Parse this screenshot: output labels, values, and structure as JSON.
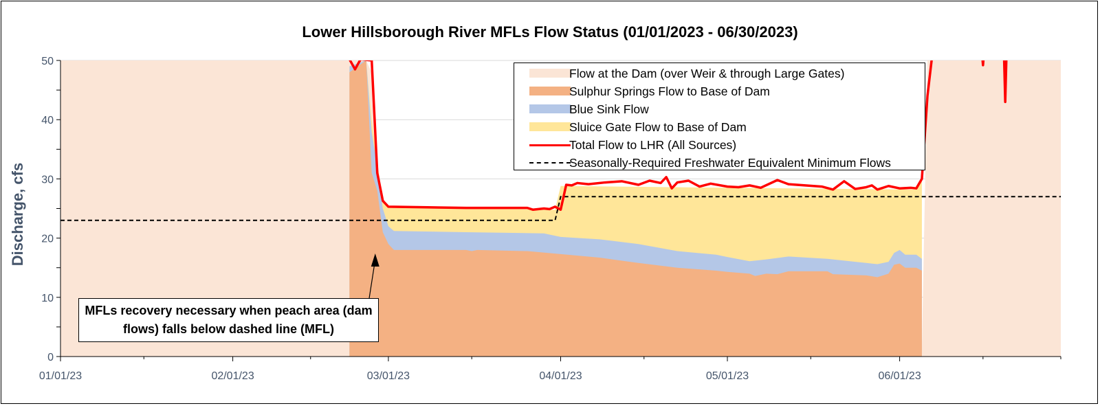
{
  "chart_data": {
    "type": "area",
    "title": "Lower Hillsborough River MFLs Flow Status (01/01/2023 - 06/30/2023)",
    "xlabel": "",
    "ylabel": "Discharge, cfs",
    "xlim": [
      "2023-01-01",
      "2023-06-30"
    ],
    "ylim": [
      0,
      50
    ],
    "yticks": [
      0,
      10,
      20,
      30,
      40,
      50
    ],
    "ytick_labels": [
      "0",
      "10",
      "20",
      "30",
      "40",
      "50"
    ],
    "xtick_labels": [
      {
        "date": "2023-01-01",
        "label": "01/01/23"
      },
      {
        "date": "2023-02-01",
        "label": "02/01/23"
      },
      {
        "date": "2023-03-01",
        "label": "03/01/23"
      },
      {
        "date": "2023-04-01",
        "label": "04/01/23"
      },
      {
        "date": "2023-05-01",
        "label": "05/01/23"
      },
      {
        "date": "2023-06-01",
        "label": "06/01/23"
      }
    ],
    "grid": "horizontal",
    "legend_position": "top-right",
    "colors": {
      "dam": "#FBE5D6",
      "sulphur": "#F4B183",
      "bluesink": "#B4C7E7",
      "sluice": "#FFE699",
      "total": "#FF0000",
      "mfl": "#000000"
    },
    "series": [
      {
        "name": "Flow at the Dam (over Weir & through Large Gates)",
        "points": [
          [
            "2023-01-01",
            50
          ],
          [
            "2023-02-22",
            50
          ],
          [
            "2023-02-25",
            50
          ],
          [
            "2023-02-26",
            48
          ],
          [
            "2023-02-27",
            31
          ],
          [
            "2023-02-28",
            7
          ],
          [
            "2023-03-01",
            0
          ],
          [
            "2023-06-04",
            0
          ],
          [
            "2023-06-05",
            1
          ],
          [
            "2023-06-06",
            50
          ],
          [
            "2023-06-30",
            50
          ]
        ]
      },
      {
        "name": "Sulphur Springs Flow to Base of Dam",
        "points": [
          [
            "2023-02-22",
            48
          ],
          [
            "2023-02-25",
            50
          ],
          [
            "2023-02-26",
            31
          ],
          [
            "2023-02-27",
            28
          ],
          [
            "2023-02-28",
            21
          ],
          [
            "2023-03-01",
            19
          ],
          [
            "2023-03-02",
            18
          ],
          [
            "2023-03-15",
            18
          ],
          [
            "2023-03-16",
            17.8
          ],
          [
            "2023-03-17",
            18
          ],
          [
            "2023-03-26",
            17.8
          ],
          [
            "2023-04-01",
            17.3
          ],
          [
            "2023-04-08",
            16.7
          ],
          [
            "2023-04-15",
            15.8
          ],
          [
            "2023-04-22",
            15
          ],
          [
            "2023-04-29",
            14.5
          ],
          [
            "2023-05-01",
            14.3
          ],
          [
            "2023-05-05",
            14
          ],
          [
            "2023-05-06",
            13.6
          ],
          [
            "2023-05-08",
            14
          ],
          [
            "2023-05-10",
            13.9
          ],
          [
            "2023-05-12",
            14.4
          ],
          [
            "2023-05-19",
            14.4
          ],
          [
            "2023-05-20",
            13.9
          ],
          [
            "2023-05-26",
            13.7
          ],
          [
            "2023-05-28",
            13.4
          ],
          [
            "2023-05-30",
            14
          ],
          [
            "2023-05-31",
            15.5
          ],
          [
            "2023-06-01",
            15.7
          ],
          [
            "2023-06-02",
            15
          ],
          [
            "2023-06-04",
            15
          ],
          [
            "2023-06-05",
            14.5
          ]
        ]
      },
      {
        "name": "Blue Sink Flow",
        "points": [
          [
            "2023-02-22",
            49
          ],
          [
            "2023-02-25",
            50
          ],
          [
            "2023-02-26",
            38
          ],
          [
            "2023-02-27",
            32
          ],
          [
            "2023-02-28",
            25
          ],
          [
            "2023-03-01",
            22
          ],
          [
            "2023-03-02",
            21.2
          ],
          [
            "2023-03-15",
            21
          ],
          [
            "2023-03-29",
            20.8
          ],
          [
            "2023-04-01",
            20.2
          ],
          [
            "2023-04-08",
            19.8
          ],
          [
            "2023-04-15",
            19
          ],
          [
            "2023-04-22",
            17.8
          ],
          [
            "2023-04-29",
            17.2
          ],
          [
            "2023-05-01",
            16.8
          ],
          [
            "2023-05-05",
            16.1
          ],
          [
            "2023-05-08",
            16.4
          ],
          [
            "2023-05-12",
            16.9
          ],
          [
            "2023-05-19",
            16.5
          ],
          [
            "2023-05-26",
            15.8
          ],
          [
            "2023-05-28",
            15.6
          ],
          [
            "2023-05-30",
            16
          ],
          [
            "2023-05-31",
            17.5
          ],
          [
            "2023-06-01",
            18
          ],
          [
            "2023-06-02",
            17.2
          ],
          [
            "2023-06-04",
            17.2
          ],
          [
            "2023-06-05",
            16.5
          ]
        ]
      },
      {
        "name": "Sluice Gate Flow to Base of Dam",
        "points": [
          [
            "2023-02-22",
            49
          ],
          [
            "2023-02-25",
            50
          ],
          [
            "2023-02-26",
            40
          ],
          [
            "2023-02-27",
            33
          ],
          [
            "2023-02-28",
            26
          ],
          [
            "2023-03-01",
            25.2
          ],
          [
            "2023-03-31",
            24.8
          ],
          [
            "2023-04-01",
            28.8
          ],
          [
            "2023-05-01",
            28.5
          ],
          [
            "2023-06-04",
            28.2
          ],
          [
            "2023-06-05",
            30
          ]
        ]
      },
      {
        "name": "Total Flow to LHR (All Sources)",
        "points": [
          [
            "2023-02-22",
            50.2
          ],
          [
            "2023-02-23",
            48.5
          ],
          [
            "2023-02-24",
            50.2
          ],
          [
            "2023-02-26",
            50
          ],
          [
            "2023-02-27",
            31
          ],
          [
            "2023-02-28",
            26.3
          ],
          [
            "2023-03-01",
            25.3
          ],
          [
            "2023-03-08",
            25.2
          ],
          [
            "2023-03-15",
            25.1
          ],
          [
            "2023-03-22",
            25.1
          ],
          [
            "2023-03-26",
            25.1
          ],
          [
            "2023-03-27",
            24.8
          ],
          [
            "2023-03-29",
            25
          ],
          [
            "2023-03-30",
            24.9
          ],
          [
            "2023-03-31",
            25.3
          ],
          [
            "2023-04-01",
            24.8
          ],
          [
            "2023-04-02",
            29
          ],
          [
            "2023-04-03",
            28.9
          ],
          [
            "2023-04-04",
            29.3
          ],
          [
            "2023-04-06",
            29.1
          ],
          [
            "2023-04-09",
            29.4
          ],
          [
            "2023-04-12",
            29.6
          ],
          [
            "2023-04-15",
            29
          ],
          [
            "2023-04-17",
            29.7
          ],
          [
            "2023-04-19",
            29.3
          ],
          [
            "2023-04-20",
            30.3
          ],
          [
            "2023-04-21",
            28.4
          ],
          [
            "2023-04-22",
            29.4
          ],
          [
            "2023-04-24",
            29.7
          ],
          [
            "2023-04-26",
            28.7
          ],
          [
            "2023-04-28",
            29.2
          ],
          [
            "2023-05-01",
            28.7
          ],
          [
            "2023-05-03",
            28.6
          ],
          [
            "2023-05-05",
            28.9
          ],
          [
            "2023-05-07",
            28.5
          ],
          [
            "2023-05-10",
            29.8
          ],
          [
            "2023-05-12",
            29.1
          ],
          [
            "2023-05-15",
            28.9
          ],
          [
            "2023-05-18",
            28.7
          ],
          [
            "2023-05-20",
            28.2
          ],
          [
            "2023-05-22",
            29.6
          ],
          [
            "2023-05-24",
            28.3
          ],
          [
            "2023-05-26",
            28.6
          ],
          [
            "2023-05-27",
            28.9
          ],
          [
            "2023-05-28",
            28.2
          ],
          [
            "2023-05-30",
            28.8
          ],
          [
            "2023-06-01",
            28.4
          ],
          [
            "2023-06-03",
            28.5
          ],
          [
            "2023-06-04",
            28.4
          ],
          [
            "2023-06-05",
            30
          ],
          [
            "2023-06-06",
            44
          ],
          [
            "2023-06-07",
            52
          ]
        ]
      },
      {
        "name": "Seasonally-Required Freshwater Equivalent Minimum Flows",
        "points": [
          [
            "2023-01-01",
            23
          ],
          [
            "2023-03-31",
            23
          ],
          [
            "2023-04-01",
            27
          ],
          [
            "2023-06-30",
            27
          ]
        ]
      }
    ],
    "spikes": [
      {
        "name": "Total Flow to LHR (All Sources)",
        "points": [
          [
            "2023-06-16",
            52
          ],
          [
            "2023-06-16",
            49.2
          ],
          [
            "2023-06-16",
            52
          ]
        ]
      },
      {
        "name": "Total Flow to LHR (All Sources)",
        "points": [
          [
            "2023-06-20",
            52
          ],
          [
            "2023-06-20",
            43
          ],
          [
            "2023-06-20",
            52
          ]
        ]
      }
    ],
    "annotation": "MFLs recovery necessary when peach area (dam flows) falls below dashed line (MFL)"
  }
}
